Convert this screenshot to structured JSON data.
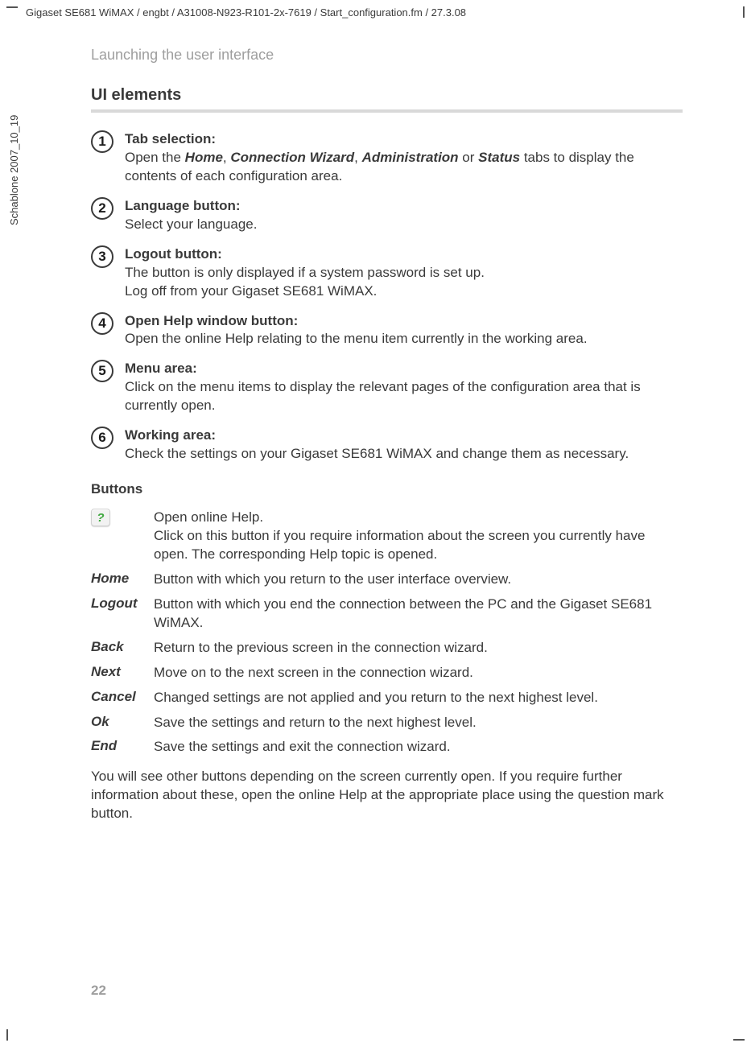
{
  "header_path": "Gigaset SE681 WiMAX / engbt / A31008-N923-R101-2x-7619 / Start_configuration.fm / 27.3.08",
  "side_label": "Schablone 2007_10_19",
  "section_title": "Launching the user interface",
  "subheading": "UI elements",
  "items": [
    {
      "num": "1",
      "title": "Tab selection:",
      "body_prefix": "Open the ",
      "bold_parts": [
        "Home",
        "Connection Wizard",
        "Administration",
        "Status"
      ],
      "separators": [
        ", ",
        ", ",
        " or "
      ],
      "body_suffix": " tabs to display the contents of each configuration area."
    },
    {
      "num": "2",
      "title": "Language button:",
      "body": "Select your language."
    },
    {
      "num": "3",
      "title": "Logout button:",
      "body": "The button is only displayed if a system password is set up.\nLog off from your Gigaset SE681 WiMAX."
    },
    {
      "num": "4",
      "title": "Open Help window button:",
      "body": "Open the online Help relating to the menu item currently in the working area."
    },
    {
      "num": "5",
      "title": "Menu area:",
      "body": "Click on the menu items to display the relevant pages of the configuration area that is currently open."
    },
    {
      "num": "6",
      "title": "Working area:",
      "body": "Check the settings on your Gigaset SE681 WiMAX and change them as necessary."
    }
  ],
  "buttons_heading": "Buttons",
  "buttons": [
    {
      "label": "",
      "icon": "?",
      "desc": "Open online Help.\nClick on this button if you require information about the screen you currently have open. The corresponding Help topic is opened."
    },
    {
      "label": "Home",
      "desc": "Button with which you return to the user interface overview."
    },
    {
      "label": "Logout",
      "desc": "Button with which you end the connection between the PC and the Gigaset SE681 WiMAX."
    },
    {
      "label": "Back",
      "desc": "Return to the previous screen in the connection wizard."
    },
    {
      "label": "Next",
      "desc": "Move on to the next screen in the connection wizard."
    },
    {
      "label": "Cancel",
      "desc": "Changed settings are not applied and you return to the next highest level."
    },
    {
      "label": "Ok",
      "desc": "Save the settings and return to the next highest level."
    },
    {
      "label": "End",
      "desc": "Save the settings and exit the connection wizard."
    }
  ],
  "closing": "You will see other buttons depending on the screen currently open. If you require further information about these, open the online Help at the appropriate place using the question mark button.",
  "page_number": "22",
  "colors": {
    "text": "#3a3a3a",
    "muted": "#9e9e9e",
    "rule": "#d9d9d9",
    "help_green": "#3fa83f"
  }
}
